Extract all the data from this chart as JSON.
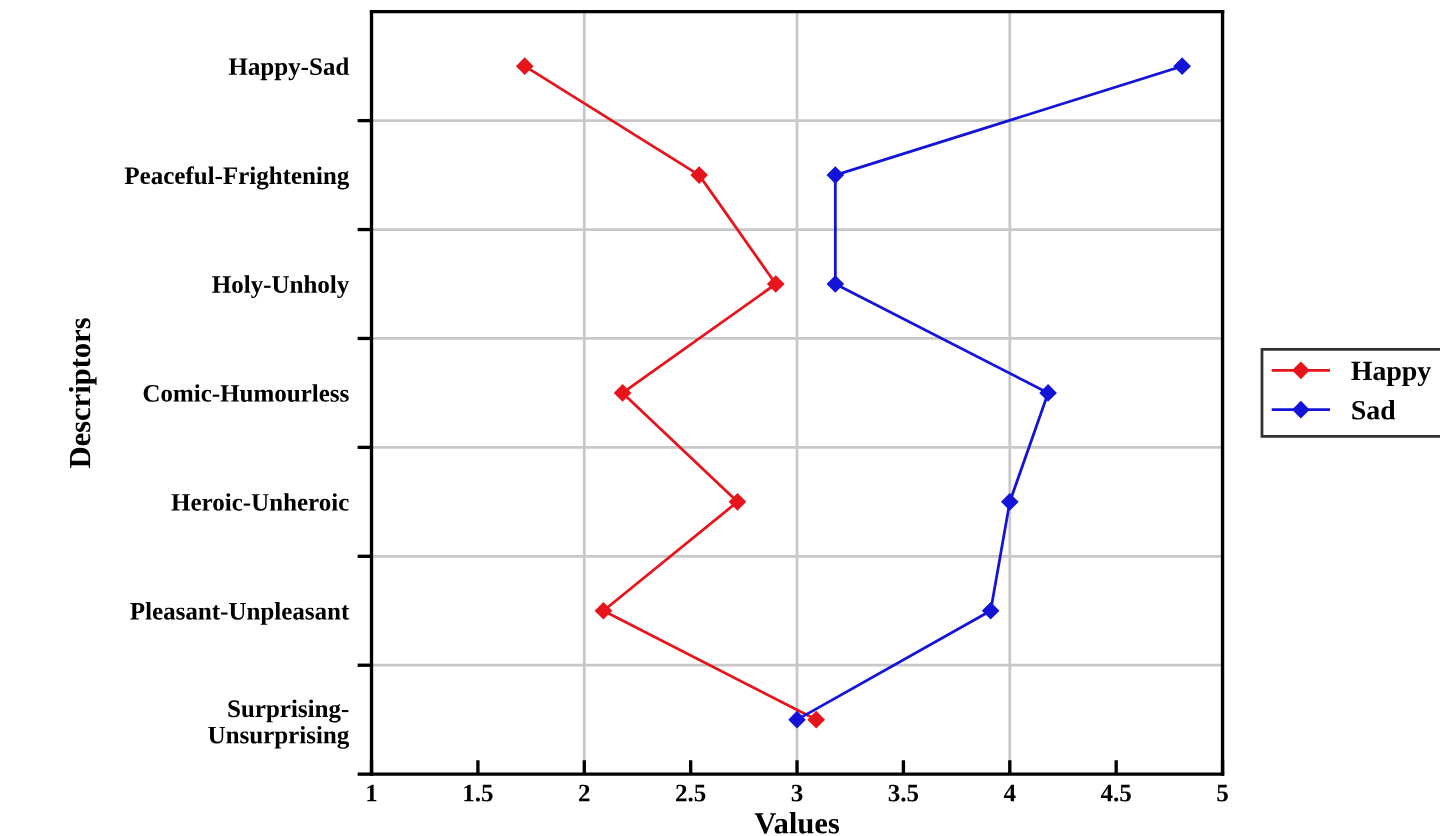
{
  "chart_data": {
    "type": "line",
    "orientation": "horizontal",
    "xlabel": "Values",
    "ylabel": "Descriptors",
    "categories": [
      "Happy-Sad",
      "Peaceful-Frightening",
      "Holy-Unholy",
      "Comic-Humourless",
      "Heroic-Unheroic",
      "Pleasant-Unpleasant",
      "Surprising-\nUnsurprising"
    ],
    "series": [
      {
        "name": "Happy",
        "color": "#e8141c",
        "values": [
          1.72,
          2.54,
          2.9,
          2.18,
          2.72,
          2.09,
          3.09
        ]
      },
      {
        "name": "Sad",
        "color": "#1414d8",
        "values": [
          4.81,
          3.18,
          3.18,
          4.18,
          4.0,
          3.91,
          3.0
        ]
      }
    ],
    "xlim": [
      1,
      5
    ],
    "xticks": [
      1,
      1.5,
      2,
      2.5,
      3,
      3.5,
      4,
      4.5,
      5
    ],
    "grid": true,
    "legend": "right",
    "marker": "diamond",
    "line_style": "solid"
  }
}
